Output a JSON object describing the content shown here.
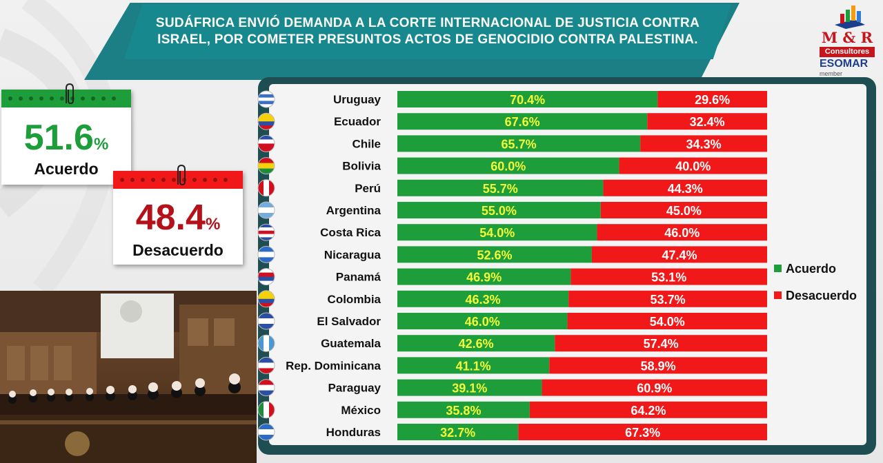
{
  "header": {
    "title_line1": "SUDÁFRICA ENVIÓ DEMANDA A LA CORTE INTERNACIONAL DE JUSTICIA CONTRA",
    "title_line2": "ISRAEL, POR COMETER PRESUNTOS ACTOS DE GENOCIDIO CONTRA PALESTINA."
  },
  "logo": {
    "brand": "M & R",
    "subtitle": "Consultores",
    "association": "ESOMAR",
    "association_tag": "member"
  },
  "summary": {
    "agree": {
      "value": "51.6",
      "unit": "%",
      "label": "Acuerdo"
    },
    "disagree": {
      "value": "48.4",
      "unit": "%",
      "label": "Desacuerdo"
    }
  },
  "colors": {
    "agree": "#1e9e3a",
    "disagree": "#f01818",
    "agree_label": "#f4ff3a",
    "disagree_label": "#ffffff",
    "panel_border": "#1f4e52",
    "banner": "#17888d",
    "brand_red": "#c4161c"
  },
  "chart_data": {
    "type": "bar",
    "orientation": "horizontal",
    "stacked": true,
    "normalized_to": 100,
    "unit": "%",
    "categories": [
      "Uruguay",
      "Ecuador",
      "Chile",
      "Bolivia",
      "Perú",
      "Argentina",
      "Costa Rica",
      "Nicaragua",
      "Panamá",
      "Colombia",
      "El Salvador",
      "Guatemala",
      "Rep. Dominicana",
      "Paraguay",
      "México",
      "Honduras"
    ],
    "series": [
      {
        "name": "Acuerdo",
        "color": "#1e9e3a",
        "values": [
          70.4,
          67.6,
          65.7,
          60.0,
          55.7,
          55.0,
          54.0,
          52.6,
          46.9,
          46.3,
          46.0,
          42.6,
          41.1,
          39.1,
          35.8,
          32.7
        ],
        "labels": [
          "70.4%",
          "67.6%",
          "65.7%",
          "60.0%",
          "55.7%",
          "55.0%",
          "54.0%",
          "52.6%",
          "46.9%",
          "46.3%",
          "46.0%",
          "42.6%",
          "41.1%",
          "39.1%",
          "35.8%",
          "32.7%"
        ]
      },
      {
        "name": "Desacuerdo",
        "color": "#f01818",
        "values": [
          29.6,
          32.4,
          34.3,
          40.0,
          44.3,
          45.0,
          46.0,
          47.4,
          53.1,
          53.7,
          54.0,
          57.4,
          58.9,
          60.9,
          64.2,
          67.3
        ],
        "labels": [
          "29.6%",
          "32.4%",
          "34.3%",
          "40.0%",
          "44.3%",
          "45.0%",
          "46.0%",
          "47.4%",
          "53.1%",
          "53.7%",
          "54.0%",
          "57.4%",
          "58.9%",
          "60.9%",
          "64.2%",
          "67.3%"
        ]
      }
    ],
    "flags": [
      "uruguay-flag-icon",
      "ecuador-flag-icon",
      "chile-flag-icon",
      "bolivia-flag-icon",
      "peru-flag-icon",
      "argentina-flag-icon",
      "costa-rica-flag-icon",
      "nicaragua-flag-icon",
      "panama-flag-icon",
      "colombia-flag-icon",
      "el-salvador-flag-icon",
      "guatemala-flag-icon",
      "dominican-republic-flag-icon",
      "paraguay-flag-icon",
      "mexico-flag-icon",
      "honduras-flag-icon"
    ],
    "legend": {
      "position": "right",
      "entries": [
        "Acuerdo",
        "Desacuerdo"
      ]
    },
    "grid": false
  }
}
